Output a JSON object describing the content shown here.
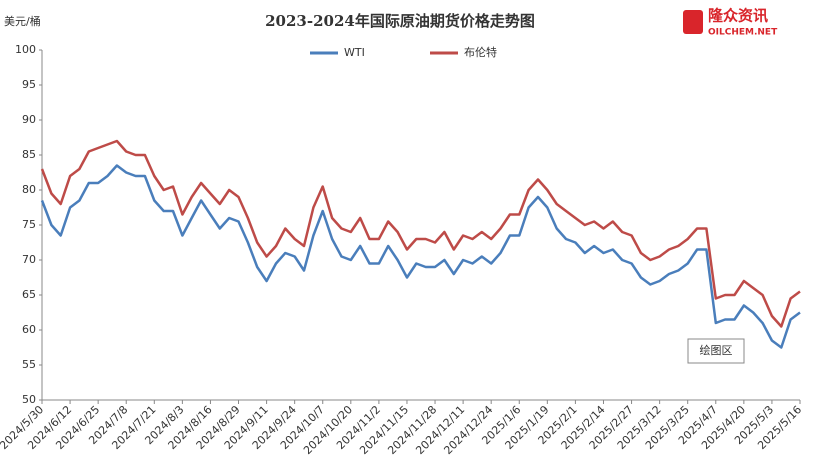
{
  "logo": {
    "name": "隆众资讯",
    "url": "OILCHEM.NET"
  },
  "chart_data": {
    "type": "line",
    "title": "2023-2024年国际原油期货价格走势图",
    "y_label": "美元/桶",
    "annotation": "绘图区",
    "categories": [
      "2024/5/30",
      null,
      null,
      "2024/6/12",
      null,
      null,
      "2024/6/25",
      null,
      null,
      "2024/7/8",
      null,
      null,
      "2024/7/21",
      null,
      null,
      "2024/8/3",
      null,
      null,
      "2024/8/16",
      null,
      null,
      "2024/8/29",
      null,
      null,
      "2024/9/11",
      null,
      null,
      "2024/9/24",
      null,
      null,
      "2024/10/7",
      null,
      null,
      "2024/10/20",
      null,
      null,
      "2024/11/2",
      null,
      null,
      "2024/11/15",
      null,
      null,
      "2024/11/28",
      null,
      null,
      "2024/12/11",
      null,
      null,
      "2024/12/24",
      null,
      null,
      "2025/1/6",
      null,
      null,
      "2025/1/19",
      null,
      null,
      "2025/2/1",
      null,
      null,
      "2025/2/14",
      null,
      null,
      "2025/2/27",
      null,
      null,
      "2025/3/12",
      null,
      null,
      "2025/3/25",
      null,
      null,
      "2025/4/7",
      null,
      null,
      "2025/4/20",
      null,
      null,
      "2025/5/3",
      null,
      null,
      "2025/5/16"
    ],
    "series": [
      {
        "name": "WTI",
        "color": "#4a7ebb",
        "values": [
          78.5,
          75,
          73.5,
          77.5,
          78.5,
          81,
          81,
          82,
          83.5,
          82.5,
          82,
          82,
          78.5,
          77,
          77,
          73.5,
          76,
          78.5,
          76.5,
          74.5,
          76,
          75.5,
          72.5,
          69,
          67,
          69.5,
          71,
          70.5,
          68.5,
          73.5,
          77,
          73,
          70.5,
          70,
          72,
          69.5,
          69.5,
          72,
          70,
          67.5,
          69.5,
          69,
          69,
          70,
          68,
          70,
          69.5,
          70.5,
          69.5,
          71,
          73.5,
          73.5,
          77.5,
          79,
          77.5,
          74.5,
          73,
          72.5,
          71,
          72,
          71,
          71.5,
          70,
          69.5,
          67.5,
          66.5,
          67,
          68,
          68.5,
          69.5,
          71.5,
          71.5,
          61,
          61.5,
          61.5,
          63.5,
          62.5,
          61,
          58.5,
          57.5,
          61.5,
          62.5
        ]
      },
      {
        "name": "布伦特",
        "color": "#be4b48",
        "values": [
          83,
          79.5,
          78,
          82,
          83,
          85.5,
          86,
          86.5,
          87,
          85.5,
          85,
          85,
          82,
          80,
          80.5,
          76.5,
          79,
          81,
          79.5,
          78,
          80,
          79,
          76,
          72.5,
          70.5,
          72,
          74.5,
          73,
          72,
          77.5,
          80.5,
          76,
          74.5,
          74,
          76,
          73,
          73,
          75.5,
          74,
          71.5,
          73,
          73,
          72.5,
          74,
          71.5,
          73.5,
          73,
          74,
          73,
          74.5,
          76.5,
          76.5,
          80,
          81.5,
          80,
          78,
          77,
          76,
          75,
          75.5,
          74.5,
          75.5,
          74,
          73.5,
          71,
          70,
          70.5,
          71.5,
          72,
          73,
          74.5,
          74.5,
          64.5,
          65,
          65,
          67,
          66,
          65,
          62,
          60.5,
          64.5,
          65.5
        ]
      }
    ],
    "ylim": [
      50,
      100
    ],
    "yticks": [
      50,
      55,
      60,
      65,
      70,
      75,
      80,
      85,
      90,
      95,
      100
    ],
    "grid": false
  }
}
